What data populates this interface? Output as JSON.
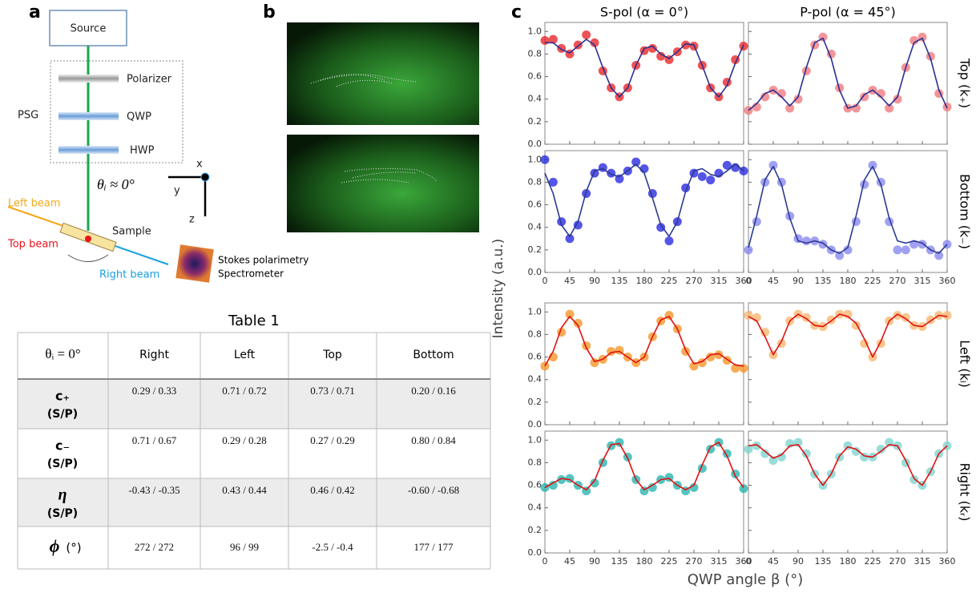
{
  "panel_labels": [
    "a",
    "b",
    "c"
  ],
  "diagram": {
    "source": "Source",
    "polarizer": "Polarizer",
    "qwp": "QWP",
    "hwp": "HWP",
    "psg": "PSG",
    "angle": "θᵢ ≈ 0°",
    "axis_x": "x",
    "axis_y": "y",
    "axis_z": "z",
    "left_beam": "Left beam",
    "top_beam": "Top beam",
    "sample": "Sample",
    "right_beam": "Right beam",
    "detector": [
      "Stokes polarimetry",
      "Spectrometer"
    ]
  },
  "table": {
    "title": "Table 1",
    "header": [
      "θᵢ = 0°",
      "Right",
      "Left",
      "Top",
      "Bottom"
    ],
    "rows": [
      {
        "label": "c₊",
        "unit": "(S/P)",
        "cells": [
          "0.29 / 0.33",
          "0.71 / 0.72",
          "0.73 / 0.71",
          "0.20 / 0.16"
        ]
      },
      {
        "label": "c₋",
        "unit": "(S/P)",
        "cells": [
          "0.71 / 0.67",
          "0.29 / 0.28",
          "0.27 / 0.29",
          "0.80 / 0.84"
        ]
      },
      {
        "label": "η",
        "unit": "(S/P)",
        "cells": [
          "-0.43 / -0.35",
          "0.43 / 0.44",
          "0.46 / 0.42",
          "-0.60 / -0.68"
        ]
      },
      {
        "label": "ϕ",
        "unit": "(°)",
        "cells": [
          "272 / 272",
          "96 / 99",
          "-2.5 / -0.4",
          "177 / 177"
        ]
      }
    ]
  },
  "panel_c": {
    "column_titles": [
      "S-pol (α = 0°)",
      "P-pol (α = 45°)"
    ],
    "row_labels": [
      "Top (k₊)",
      "Bottom (k₋)",
      "Left (kₗ)",
      "Right (kᵣ)"
    ],
    "y_label": "Intensity (a.u.)",
    "x_label": "QWP angle β (°)"
  },
  "chart_data": [
    {
      "type": "line",
      "x": [
        0,
        15,
        30,
        45,
        60,
        75,
        90,
        105,
        120,
        135,
        150,
        165,
        180,
        195,
        210,
        225,
        240,
        255,
        270,
        285,
        300,
        315,
        330,
        345,
        360
      ],
      "xlim": [
        0,
        360
      ],
      "xticks": [
        0,
        45,
        90,
        135,
        180,
        225,
        270,
        315,
        360
      ],
      "ylim": [
        0,
        1.08
      ],
      "yticks": [
        {
          "value": 0,
          "label": "0.0"
        },
        0.2,
        0.4,
        0.6,
        0.8,
        {
          "value": 1,
          "label": "1.0"
        }
      ],
      "series": [
        {
          "style": "markers",
          "color": "#e8282a",
          "values": [
            0.92,
            0.93,
            0.85,
            0.8,
            0.88,
            0.97,
            0.9,
            0.65,
            0.5,
            0.42,
            0.5,
            0.7,
            0.83,
            0.85,
            0.78,
            0.75,
            0.82,
            0.88,
            0.87,
            0.7,
            0.5,
            0.42,
            0.55,
            0.75,
            0.87
          ]
        },
        {
          "style": "line",
          "color": "#2b2f8f",
          "values": [
            0.9,
            0.9,
            0.84,
            0.81,
            0.87,
            0.93,
            0.88,
            0.68,
            0.5,
            0.42,
            0.5,
            0.7,
            0.85,
            0.87,
            0.8,
            0.76,
            0.82,
            0.89,
            0.88,
            0.7,
            0.5,
            0.42,
            0.52,
            0.72,
            0.88
          ]
        }
      ]
    },
    {
      "type": "line",
      "x": [
        0,
        15,
        30,
        45,
        60,
        75,
        90,
        105,
        120,
        135,
        150,
        165,
        180,
        195,
        210,
        225,
        240,
        255,
        270,
        285,
        300,
        315,
        330,
        345,
        360
      ],
      "xlim": [
        0,
        360
      ],
      "xticks": [
        0,
        45,
        90,
        135,
        180,
        225,
        270,
        315,
        360
      ],
      "ylim": [
        0,
        1.08
      ],
      "yticks": [
        0,
        0.2,
        0.4,
        0.6,
        0.8,
        1
      ],
      "series": [
        {
          "style": "markers",
          "color": "#f07a80",
          "values": [
            0.3,
            0.33,
            0.42,
            0.48,
            0.45,
            0.32,
            0.4,
            0.65,
            0.88,
            0.95,
            0.8,
            0.5,
            0.32,
            0.32,
            0.42,
            0.48,
            0.45,
            0.32,
            0.4,
            0.68,
            0.92,
            0.95,
            0.78,
            0.45,
            0.33
          ]
        },
        {
          "style": "line",
          "color": "#2b2f8f",
          "values": [
            0.3,
            0.36,
            0.45,
            0.48,
            0.42,
            0.34,
            0.42,
            0.68,
            0.9,
            0.94,
            0.76,
            0.48,
            0.32,
            0.34,
            0.44,
            0.48,
            0.42,
            0.34,
            0.42,
            0.68,
            0.9,
            0.94,
            0.76,
            0.48,
            0.32
          ]
        }
      ]
    },
    {
      "type": "line",
      "x": [
        0,
        15,
        30,
        45,
        60,
        75,
        90,
        105,
        120,
        135,
        150,
        165,
        180,
        195,
        210,
        225,
        240,
        255,
        270,
        285,
        300,
        315,
        330,
        345,
        360
      ],
      "xlim": [
        0,
        360
      ],
      "xticks": [
        0,
        45,
        90,
        135,
        180,
        225,
        270,
        315,
        360
      ],
      "ylim": [
        0,
        1.08
      ],
      "yticks": [
        {
          "value": 0,
          "label": "0.0"
        },
        0.2,
        0.4,
        0.6,
        0.8,
        {
          "value": 1,
          "label": "1.0"
        }
      ],
      "series": [
        {
          "style": "markers",
          "color": "#2a2ae0",
          "values": [
            1.0,
            0.8,
            0.45,
            0.3,
            0.42,
            0.7,
            0.88,
            0.93,
            0.88,
            0.83,
            0.9,
            0.98,
            0.92,
            0.7,
            0.4,
            0.28,
            0.45,
            0.75,
            0.88,
            0.85,
            0.82,
            0.88,
            0.95,
            0.93,
            0.9
          ]
        },
        {
          "style": "line",
          "color": "#2b3a8f",
          "values": [
            0.88,
            0.7,
            0.42,
            0.32,
            0.45,
            0.72,
            0.9,
            0.92,
            0.87,
            0.85,
            0.9,
            0.96,
            0.88,
            0.66,
            0.42,
            0.32,
            0.45,
            0.72,
            0.9,
            0.92,
            0.87,
            0.85,
            0.9,
            0.96,
            0.9
          ]
        }
      ]
    },
    {
      "type": "line",
      "x": [
        0,
        15,
        30,
        45,
        60,
        75,
        90,
        105,
        120,
        135,
        150,
        165,
        180,
        195,
        210,
        225,
        240,
        255,
        270,
        285,
        300,
        315,
        330,
        345,
        360
      ],
      "xlim": [
        0,
        360
      ],
      "xticks": [
        0,
        45,
        90,
        135,
        180,
        225,
        270,
        315,
        360
      ],
      "ylim": [
        0,
        1.08
      ],
      "yticks": [
        0,
        0.2,
        0.4,
        0.6,
        0.8,
        1
      ],
      "series": [
        {
          "style": "markers",
          "color": "#8a8af0",
          "values": [
            0.2,
            0.45,
            0.8,
            0.95,
            0.8,
            0.5,
            0.3,
            0.28,
            0.28,
            0.25,
            0.2,
            0.15,
            0.2,
            0.45,
            0.78,
            0.95,
            0.8,
            0.45,
            0.2,
            0.2,
            0.25,
            0.25,
            0.2,
            0.15,
            0.25
          ]
        },
        {
          "style": "line",
          "color": "#2b3a8f",
          "values": [
            0.22,
            0.5,
            0.82,
            0.94,
            0.78,
            0.48,
            0.28,
            0.26,
            0.28,
            0.26,
            0.2,
            0.17,
            0.22,
            0.5,
            0.82,
            0.94,
            0.78,
            0.48,
            0.28,
            0.26,
            0.28,
            0.26,
            0.2,
            0.17,
            0.25
          ]
        }
      ]
    },
    {
      "type": "line",
      "x": [
        0,
        15,
        30,
        45,
        60,
        75,
        90,
        105,
        120,
        135,
        150,
        165,
        180,
        195,
        210,
        225,
        240,
        255,
        270,
        285,
        300,
        315,
        330,
        345,
        360
      ],
      "xlim": [
        0,
        360
      ],
      "xticks": [
        0,
        45,
        90,
        135,
        180,
        225,
        270,
        315,
        360
      ],
      "ylim": [
        0,
        1.08
      ],
      "yticks": [
        {
          "value": 0,
          "label": "0.0"
        },
        0.2,
        0.4,
        0.6,
        0.8,
        {
          "value": 1,
          "label": "1.0"
        }
      ],
      "series": [
        {
          "style": "markers",
          "color": "#f5962a",
          "values": [
            0.52,
            0.6,
            0.82,
            0.98,
            0.9,
            0.7,
            0.55,
            0.58,
            0.65,
            0.66,
            0.6,
            0.55,
            0.6,
            0.78,
            0.92,
            0.97,
            0.85,
            0.65,
            0.52,
            0.55,
            0.6,
            0.62,
            0.57,
            0.5,
            0.5
          ]
        },
        {
          "style": "line",
          "color": "#e01010",
          "values": [
            0.52,
            0.65,
            0.86,
            0.96,
            0.88,
            0.68,
            0.56,
            0.58,
            0.64,
            0.65,
            0.6,
            0.55,
            0.6,
            0.78,
            0.93,
            0.96,
            0.85,
            0.66,
            0.54,
            0.56,
            0.62,
            0.63,
            0.58,
            0.53,
            0.52
          ]
        }
      ]
    },
    {
      "type": "line",
      "x": [
        0,
        15,
        30,
        45,
        60,
        75,
        90,
        105,
        120,
        135,
        150,
        165,
        180,
        195,
        210,
        225,
        240,
        255,
        270,
        285,
        300,
        315,
        330,
        345,
        360
      ],
      "xlim": [
        0,
        360
      ],
      "xticks": [
        0,
        45,
        90,
        135,
        180,
        225,
        270,
        315,
        360
      ],
      "ylim": [
        0,
        1.08
      ],
      "yticks": [
        0,
        0.2,
        0.4,
        0.6,
        0.8,
        1
      ],
      "series": [
        {
          "style": "markers",
          "color": "#f9b870",
          "values": [
            0.97,
            0.95,
            0.82,
            0.62,
            0.72,
            0.92,
            0.98,
            0.95,
            0.88,
            0.87,
            0.93,
            0.98,
            0.98,
            0.88,
            0.72,
            0.6,
            0.72,
            0.92,
            0.97,
            0.95,
            0.88,
            0.87,
            0.93,
            0.97,
            0.97
          ]
        },
        {
          "style": "line",
          "color": "#e01010",
          "values": [
            0.96,
            0.92,
            0.78,
            0.62,
            0.74,
            0.92,
            0.98,
            0.94,
            0.88,
            0.87,
            0.92,
            0.98,
            0.96,
            0.9,
            0.76,
            0.6,
            0.74,
            0.92,
            0.98,
            0.94,
            0.88,
            0.87,
            0.92,
            0.97,
            0.96
          ]
        }
      ]
    },
    {
      "type": "line",
      "x": [
        0,
        15,
        30,
        45,
        60,
        75,
        90,
        105,
        120,
        135,
        150,
        165,
        180,
        195,
        210,
        225,
        240,
        255,
        270,
        285,
        300,
        315,
        330,
        345,
        360
      ],
      "xlim": [
        0,
        360
      ],
      "xticks": [
        0,
        45,
        90,
        135,
        180,
        225,
        270,
        315,
        360
      ],
      "ylim": [
        0,
        1.08
      ],
      "yticks": [
        {
          "value": 0,
          "label": "0.0"
        },
        0.2,
        0.4,
        0.6,
        0.8,
        {
          "value": 1,
          "label": "1.0"
        }
      ],
      "series": [
        {
          "style": "markers",
          "color": "#2ab5b0",
          "values": [
            0.58,
            0.6,
            0.65,
            0.66,
            0.6,
            0.55,
            0.62,
            0.8,
            0.95,
            0.98,
            0.85,
            0.65,
            0.55,
            0.58,
            0.65,
            0.67,
            0.6,
            0.55,
            0.58,
            0.75,
            0.92,
            0.98,
            0.88,
            0.7,
            0.57
          ]
        },
        {
          "style": "line",
          "color": "#e01010",
          "values": [
            0.58,
            0.62,
            0.66,
            0.65,
            0.6,
            0.56,
            0.64,
            0.82,
            0.96,
            0.97,
            0.84,
            0.65,
            0.56,
            0.6,
            0.65,
            0.66,
            0.6,
            0.56,
            0.6,
            0.78,
            0.94,
            0.98,
            0.86,
            0.68,
            0.58
          ]
        }
      ]
    },
    {
      "type": "line",
      "x": [
        0,
        15,
        30,
        45,
        60,
        75,
        90,
        105,
        120,
        135,
        150,
        165,
        180,
        195,
        210,
        225,
        240,
        255,
        270,
        285,
        300,
        315,
        330,
        345,
        360
      ],
      "xlim": [
        0,
        360
      ],
      "xticks": [
        0,
        45,
        90,
        135,
        180,
        225,
        270,
        315,
        360
      ],
      "ylim": [
        0,
        1.08
      ],
      "yticks": [
        0,
        0.2,
        0.4,
        0.6,
        0.8,
        1
      ],
      "series": [
        {
          "style": "markers",
          "color": "#7fd5cf",
          "values": [
            0.92,
            0.95,
            0.88,
            0.82,
            0.85,
            0.97,
            0.98,
            0.88,
            0.7,
            0.6,
            0.7,
            0.85,
            0.95,
            0.9,
            0.85,
            0.85,
            0.92,
            0.98,
            0.95,
            0.8,
            0.65,
            0.6,
            0.72,
            0.88,
            0.95
          ]
        },
        {
          "style": "line",
          "color": "#e01010",
          "values": [
            0.95,
            0.96,
            0.9,
            0.84,
            0.87,
            0.95,
            0.96,
            0.86,
            0.7,
            0.6,
            0.7,
            0.86,
            0.94,
            0.92,
            0.86,
            0.85,
            0.9,
            0.96,
            0.95,
            0.82,
            0.66,
            0.6,
            0.72,
            0.88,
            0.95
          ]
        }
      ]
    }
  ]
}
